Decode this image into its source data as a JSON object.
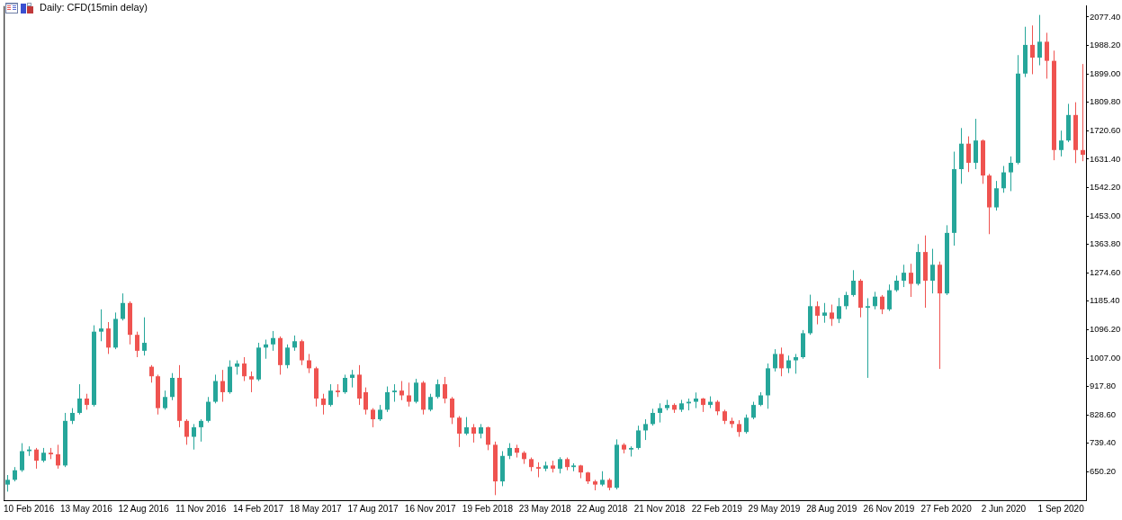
{
  "chart_data": {
    "type": "candlestick",
    "title": "Daily: CFD(15min delay)",
    "categories": [
      null,
      null,
      null,
      "10 Feb 2016",
      null,
      null,
      null,
      null,
      null,
      null,
      null,
      "13 May 2016",
      null,
      null,
      null,
      null,
      null,
      null,
      null,
      "12 Aug 2016",
      null,
      null,
      null,
      null,
      null,
      null,
      null,
      "11 Nov 2016",
      null,
      null,
      null,
      null,
      null,
      null,
      null,
      "14 Feb 2017",
      null,
      null,
      null,
      null,
      null,
      null,
      null,
      "18 May 2017",
      null,
      null,
      null,
      null,
      null,
      null,
      null,
      "17 Aug 2017",
      null,
      null,
      null,
      null,
      null,
      null,
      null,
      "16 Nov 2017",
      null,
      null,
      null,
      null,
      null,
      null,
      null,
      "19 Feb 2018",
      null,
      null,
      null,
      null,
      null,
      null,
      null,
      "23 May 2018",
      null,
      null,
      null,
      null,
      null,
      null,
      null,
      "22 Aug 2018",
      null,
      null,
      null,
      null,
      null,
      null,
      null,
      "21 Nov 2018",
      null,
      null,
      null,
      null,
      null,
      null,
      null,
      "22 Feb 2019",
      null,
      null,
      null,
      null,
      null,
      null,
      null,
      "29 May 2019",
      null,
      null,
      null,
      null,
      null,
      null,
      null,
      "28 Aug 2019",
      null,
      null,
      null,
      null,
      null,
      null,
      null,
      "26 Nov 2019",
      null,
      null,
      null,
      null,
      null,
      null,
      null,
      "27 Feb 2020",
      null,
      null,
      null,
      null,
      null,
      null,
      null,
      "2 Jun 2020",
      null,
      null,
      null,
      null,
      null,
      null,
      null,
      "1 Sep 2020",
      null,
      null,
      null
    ],
    "ohlc": [
      [
        610,
        640,
        588,
        625
      ],
      [
        625,
        665,
        620,
        655
      ],
      [
        655,
        740,
        650,
        715
      ],
      [
        715,
        730,
        700,
        720
      ],
      [
        720,
        725,
        660,
        685
      ],
      [
        685,
        725,
        680,
        710
      ],
      [
        710,
        725,
        690,
        705
      ],
      [
        705,
        735,
        660,
        670
      ],
      [
        670,
        835,
        665,
        810
      ],
      [
        810,
        850,
        800,
        835
      ],
      [
        835,
        925,
        830,
        880
      ],
      [
        880,
        895,
        845,
        860
      ],
      [
        860,
        1110,
        855,
        1090
      ],
      [
        1090,
        1160,
        1060,
        1100
      ],
      [
        1100,
        1120,
        1020,
        1040
      ],
      [
        1040,
        1150,
        1035,
        1130
      ],
      [
        1130,
        1210,
        1125,
        1180
      ],
      [
        1180,
        1185,
        1050,
        1080
      ],
      [
        1080,
        1090,
        1010,
        1030
      ],
      [
        1030,
        1135,
        1015,
        1055
      ],
      [
        980,
        985,
        930,
        950
      ],
      [
        950,
        955,
        830,
        850
      ],
      [
        850,
        905,
        845,
        885
      ],
      [
        885,
        960,
        875,
        945
      ],
      [
        945,
        985,
        790,
        810
      ],
      [
        810,
        815,
        735,
        760
      ],
      [
        760,
        800,
        720,
        790
      ],
      [
        790,
        815,
        745,
        810
      ],
      [
        810,
        885,
        805,
        870
      ],
      [
        870,
        955,
        865,
        935
      ],
      [
        935,
        970,
        870,
        900
      ],
      [
        900,
        1000,
        895,
        980
      ],
      [
        980,
        1000,
        955,
        990
      ],
      [
        990,
        1010,
        935,
        950
      ],
      [
        950,
        965,
        900,
        940
      ],
      [
        940,
        1055,
        935,
        1040
      ],
      [
        1040,
        1065,
        1005,
        1050
      ],
      [
        1050,
        1092,
        1030,
        1070
      ],
      [
        1070,
        1075,
        955,
        985
      ],
      [
        985,
        1050,
        975,
        1040
      ],
      [
        1040,
        1078,
        1030,
        1060
      ],
      [
        1060,
        1065,
        985,
        1000
      ],
      [
        1000,
        1020,
        960,
        975
      ],
      [
        975,
        980,
        855,
        880
      ],
      [
        880,
        895,
        830,
        860
      ],
      [
        860,
        925,
        855,
        905
      ],
      [
        905,
        925,
        885,
        900
      ],
      [
        900,
        955,
        895,
        945
      ],
      [
        945,
        970,
        915,
        955
      ],
      [
        955,
        985,
        860,
        880
      ],
      [
        900,
        915,
        830,
        845
      ],
      [
        845,
        850,
        790,
        815
      ],
      [
        815,
        860,
        810,
        845
      ],
      [
        845,
        918,
        838,
        900
      ],
      [
        900,
        925,
        870,
        905
      ],
      [
        905,
        935,
        875,
        890
      ],
      [
        890,
        930,
        855,
        870
      ],
      [
        870,
        942,
        865,
        930
      ],
      [
        930,
        935,
        830,
        845
      ],
      [
        845,
        895,
        840,
        885
      ],
      [
        885,
        940,
        880,
        925
      ],
      [
        925,
        948,
        865,
        880
      ],
      [
        880,
        885,
        800,
        820
      ],
      [
        820,
        825,
        728,
        770
      ],
      [
        770,
        822,
        765,
        790
      ],
      [
        790,
        800,
        742,
        770
      ],
      [
        770,
        800,
        755,
        790
      ],
      [
        790,
        792,
        718,
        735
      ],
      [
        735,
        745,
        577,
        620
      ],
      [
        620,
        715,
        605,
        700
      ],
      [
        700,
        740,
        690,
        725
      ],
      [
        725,
        735,
        695,
        710
      ],
      [
        710,
        715,
        675,
        690
      ],
      [
        690,
        695,
        652,
        665
      ],
      [
        665,
        680,
        633,
        660
      ],
      [
        660,
        682,
        652,
        670
      ],
      [
        670,
        685,
        648,
        660
      ],
      [
        660,
        696,
        645,
        690
      ],
      [
        690,
        695,
        655,
        665
      ],
      [
        665,
        677,
        652,
        670
      ],
      [
        670,
        672,
        630,
        648
      ],
      [
        648,
        650,
        612,
        620
      ],
      [
        620,
        625,
        592,
        610
      ],
      [
        610,
        652,
        605,
        625
      ],
      [
        625,
        630,
        592,
        600
      ],
      [
        600,
        752,
        595,
        735
      ],
      [
        735,
        740,
        708,
        720
      ],
      [
        720,
        730,
        698,
        725
      ],
      [
        725,
        795,
        720,
        780
      ],
      [
        780,
        815,
        750,
        800
      ],
      [
        800,
        848,
        795,
        835
      ],
      [
        835,
        865,
        805,
        850
      ],
      [
        850,
        876,
        843,
        860
      ],
      [
        860,
        865,
        835,
        845
      ],
      [
        845,
        876,
        838,
        865
      ],
      [
        865,
        880,
        843,
        870
      ],
      [
        870,
        899,
        850,
        880
      ],
      [
        880,
        882,
        838,
        860
      ],
      [
        860,
        887,
        850,
        870
      ],
      [
        870,
        875,
        828,
        840
      ],
      [
        840,
        845,
        800,
        810
      ],
      [
        810,
        820,
        788,
        800
      ],
      [
        800,
        812,
        760,
        775
      ],
      [
        775,
        830,
        770,
        820
      ],
      [
        820,
        870,
        815,
        860
      ],
      [
        860,
        900,
        856,
        890
      ],
      [
        890,
        990,
        848,
        975
      ],
      [
        975,
        1035,
        965,
        1020
      ],
      [
        1020,
        1040,
        950,
        975
      ],
      [
        975,
        1015,
        960,
        1000
      ],
      [
        1000,
        1020,
        958,
        1010
      ],
      [
        1010,
        1095,
        1005,
        1085
      ],
      [
        1085,
        1206,
        1080,
        1170
      ],
      [
        1170,
        1185,
        1113,
        1140
      ],
      [
        1140,
        1180,
        1118,
        1150
      ],
      [
        1150,
        1175,
        1108,
        1130
      ],
      [
        1130,
        1196,
        1117,
        1170
      ],
      [
        1170,
        1215,
        1160,
        1205
      ],
      [
        1205,
        1283,
        1200,
        1250
      ],
      [
        1250,
        1255,
        1135,
        1165
      ],
      [
        1165,
        1195,
        945,
        1170
      ],
      [
        1170,
        1215,
        1160,
        1200
      ],
      [
        1200,
        1205,
        1145,
        1160
      ],
      [
        1160,
        1238,
        1155,
        1220
      ],
      [
        1220,
        1266,
        1215,
        1250
      ],
      [
        1250,
        1300,
        1230,
        1275
      ],
      [
        1275,
        1303,
        1199,
        1240
      ],
      [
        1240,
        1365,
        1235,
        1340
      ],
      [
        1340,
        1392,
        1165,
        1250
      ],
      [
        1250,
        1350,
        1210,
        1300
      ],
      [
        1300,
        1310,
        973,
        1210
      ],
      [
        1210,
        1424,
        1205,
        1400
      ],
      [
        1400,
        1655,
        1360,
        1600
      ],
      [
        1600,
        1729,
        1554,
        1680
      ],
      [
        1680,
        1703,
        1591,
        1620
      ],
      [
        1620,
        1758,
        1600,
        1690
      ],
      [
        1690,
        1693,
        1554,
        1580
      ],
      [
        1580,
        1585,
        1396,
        1480
      ],
      [
        1480,
        1563,
        1470,
        1540
      ],
      [
        1540,
        1610,
        1526,
        1590
      ],
      [
        1590,
        1640,
        1531,
        1620
      ],
      [
        1620,
        1958,
        1615,
        1900
      ],
      [
        1900,
        2047,
        1889,
        1990
      ],
      [
        1990,
        2051,
        1898,
        1950
      ],
      [
        1950,
        2084,
        1926,
        2000
      ],
      [
        2000,
        2028,
        1884,
        1940
      ],
      [
        1940,
        1972,
        1628,
        1660
      ],
      [
        1660,
        1721,
        1640,
        1690
      ],
      [
        1690,
        1805,
        1685,
        1770
      ],
      [
        1770,
        1810,
        1619,
        1660
      ],
      [
        1660,
        1930,
        1625,
        1645
      ]
    ],
    "colors": [
      "#26a69a",
      "#26a69a",
      "#26a69a",
      "#26a69a",
      "#ef5350",
      "#26a69a",
      "#ef5350",
      "#ef5350",
      "#26a69a",
      "#26a69a",
      "#26a69a",
      "#ef5350",
      "#26a69a",
      "#26a69a",
      "#ef5350",
      "#26a69a",
      "#26a69a",
      "#ef5350",
      "#ef5350",
      "#26a69a",
      "#ef5350",
      "#ef5350",
      "#26a69a",
      "#26a69a",
      "#ef5350",
      "#ef5350",
      "#26a69a",
      "#26a69a",
      "#26a69a",
      "#26a69a",
      "#ef5350",
      "#26a69a",
      "#26a69a",
      "#ef5350",
      "#ef5350",
      "#26a69a",
      "#26a69a",
      "#26a69a",
      "#ef5350",
      "#26a69a",
      "#26a69a",
      "#ef5350",
      "#ef5350",
      "#ef5350",
      "#ef5350",
      "#26a69a",
      "#ef5350",
      "#26a69a",
      "#26a69a",
      "#ef5350",
      "#ef5350",
      "#ef5350",
      "#26a69a",
      "#26a69a",
      "#26a69a",
      "#ef5350",
      "#ef5350",
      "#26a69a",
      "#ef5350",
      "#26a69a",
      "#26a69a",
      "#ef5350",
      "#ef5350",
      "#ef5350",
      "#26a69a",
      "#ef5350",
      "#26a69a",
      "#ef5350",
      "#ef5350",
      "#26a69a",
      "#26a69a",
      "#ef5350",
      "#ef5350",
      "#ef5350",
      "#ef5350",
      "#26a69a",
      "#ef5350",
      "#26a69a",
      "#ef5350",
      "#26a69a",
      "#ef5350",
      "#ef5350",
      "#ef5350",
      "#26a69a",
      "#ef5350",
      "#26a69a",
      "#ef5350",
      "#26a69a",
      "#26a69a",
      "#26a69a",
      "#26a69a",
      "#26a69a",
      "#26a69a",
      "#ef5350",
      "#26a69a",
      "#26a69a",
      "#26a69a",
      "#ef5350",
      "#26a69a",
      "#ef5350",
      "#ef5350",
      "#ef5350",
      "#ef5350",
      "#26a69a",
      "#26a69a",
      "#26a69a",
      "#26a69a",
      "#26a69a",
      "#ef5350",
      "#26a69a",
      "#26a69a",
      "#26a69a",
      "#26a69a",
      "#ef5350",
      "#26a69a",
      "#ef5350",
      "#26a69a",
      "#26a69a",
      "#26a69a",
      "#ef5350",
      "#26a69a",
      "#26a69a",
      "#ef5350",
      "#26a69a",
      "#26a69a",
      "#26a69a",
      "#ef5350",
      "#26a69a",
      "#ef5350",
      "#26a69a",
      "#ef5350",
      "#26a69a",
      "#26a69a",
      "#26a69a",
      "#ef5350",
      "#26a69a",
      "#ef5350",
      "#ef5350",
      "#26a69a",
      "#26a69a",
      "#26a69a",
      "#26a69a",
      "#26a69a",
      "#ef5350",
      "#26a69a",
      "#ef5350",
      "#ef5350",
      "#26a69a",
      "#26a69a",
      "#ef5350",
      "#ef5350"
    ],
    "ylim": [
      561.0,
      2112.0
    ],
    "yticks": [
      {
        "value": 650.2,
        "label": "650.20"
      },
      {
        "value": 739.4,
        "label": "739.40"
      },
      {
        "value": 828.6,
        "label": "828.60"
      },
      {
        "value": 917.8,
        "label": "917.80"
      },
      {
        "value": 1007.0,
        "label": "1007.00"
      },
      {
        "value": 1096.2,
        "label": "1096.20"
      },
      {
        "value": 1185.4,
        "label": "1185.40"
      },
      {
        "value": 1274.6,
        "label": "1274.60"
      },
      {
        "value": 1363.8,
        "label": "1363.80"
      },
      {
        "value": 1453.0,
        "label": "1453.00"
      },
      {
        "value": 1542.2,
        "label": "1542.20"
      },
      {
        "value": 1631.4,
        "label": "1631.40"
      },
      {
        "value": 1720.6,
        "label": "1720.60"
      },
      {
        "value": 1809.8,
        "label": "1809.80"
      },
      {
        "value": 1899.0,
        "label": "1899.00"
      },
      {
        "value": 1988.2,
        "label": "1988.20"
      },
      {
        "value": 2077.4,
        "label": "2077.40"
      }
    ]
  }
}
